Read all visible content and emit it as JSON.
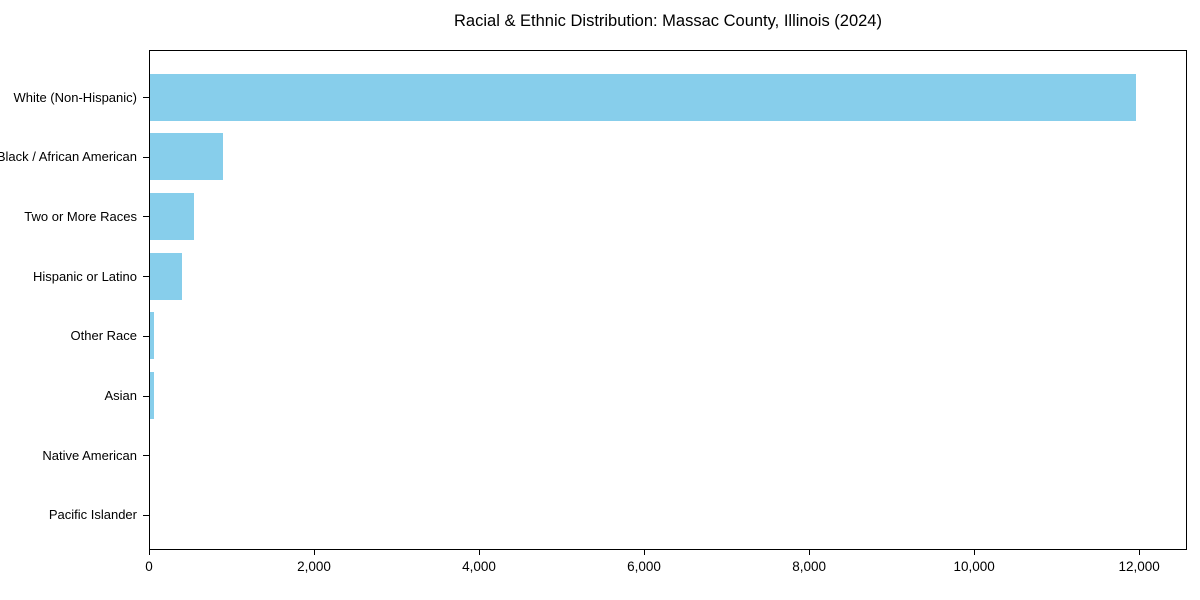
{
  "chart_data": {
    "type": "bar",
    "orientation": "horizontal",
    "title": "Racial & Ethnic Distribution: Massac County, Illinois (2024)",
    "categories": [
      "White (Non-Hispanic)",
      "Black / African American",
      "Two or More Races",
      "Hispanic or Latino",
      "Other Race",
      "Asian",
      "Native American",
      "Pacific Islander"
    ],
    "values": [
      11950,
      885,
      530,
      390,
      50,
      48,
      0,
      0
    ],
    "xlabel": "",
    "ylabel": "",
    "xlim": [
      0,
      12580
    ],
    "xticks": [
      0,
      2000,
      4000,
      6000,
      8000,
      10000,
      12000
    ],
    "xtick_labels": [
      "0",
      "2,000",
      "4,000",
      "6,000",
      "8,000",
      "10,000",
      "12,000"
    ],
    "bar_color": "#87CEEB",
    "grid": false,
    "legend": "none",
    "frame": "full-box"
  }
}
